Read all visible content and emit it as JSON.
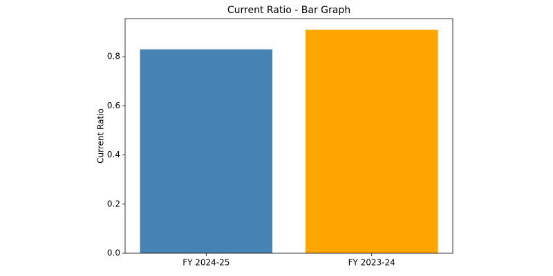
{
  "chart_data": {
    "type": "bar",
    "title": "Current Ratio - Bar Graph",
    "ylabel": "Current Ratio",
    "categories": [
      "FY 2024-25",
      "FY 2023-24"
    ],
    "values": [
      0.83,
      0.91
    ],
    "colors": [
      "#4682b4",
      "#ffa500"
    ],
    "ylim": [
      0,
      0.955
    ],
    "yticks": [
      {
        "value": 0,
        "label": "0.0"
      },
      0.2,
      0.4,
      0.6,
      0.8
    ],
    "grid": false
  }
}
